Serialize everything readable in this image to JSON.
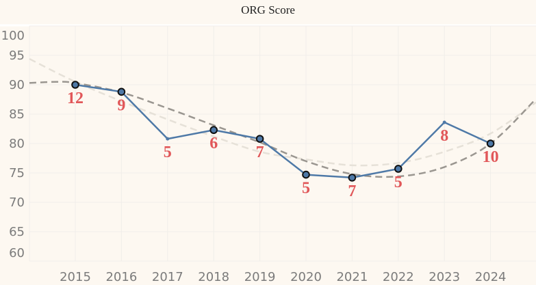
{
  "chart_data": {
    "type": "line",
    "title": "ORG Score",
    "xlabel": "",
    "ylabel": "",
    "x": [
      2015,
      2016,
      2017,
      2018,
      2019,
      2020,
      2021,
      2022,
      2023,
      2024
    ],
    "x_ticks": [
      "2015",
      "2016",
      "2017",
      "2018",
      "2019",
      "2020",
      "2021",
      "2022",
      "2023",
      "2024"
    ],
    "y_ticks": [
      "60",
      "65",
      "70",
      "75",
      "80",
      "85",
      "90",
      "95",
      "100"
    ],
    "ylim": [
      60,
      100
    ],
    "xlim": [
      2014,
      2025
    ],
    "grid": true,
    "series": [
      {
        "name": "ORG Score",
        "color": "#4e79a7",
        "values": [
          90.0,
          88.8,
          80.8,
          82.3,
          80.8,
          74.7,
          74.2,
          75.7,
          83.6,
          80.0
        ],
        "labels": [
          "12",
          "9",
          "5",
          "6",
          "7",
          "5",
          "7",
          "5",
          "8",
          "10"
        ],
        "marked": [
          true,
          true,
          false,
          true,
          true,
          true,
          true,
          true,
          false,
          true
        ]
      }
    ],
    "trendlines": [
      {
        "name": "trend-light",
        "color": "#e6e1d8",
        "x": [
          2014,
          2015,
          2016,
          2017,
          2018,
          2019,
          2020,
          2021,
          2022,
          2023,
          2024,
          2025
        ],
        "values": [
          94.4,
          90.5,
          87.2,
          84.1,
          81.2,
          78.6,
          77.3,
          76.3,
          76.7,
          78.6,
          81.7,
          87.0
        ]
      },
      {
        "name": "trend-dark",
        "color": "#9a9690",
        "x": [
          2014,
          2014.6,
          2015,
          2016,
          2017,
          2018,
          2019,
          2020,
          2021,
          2022,
          2023,
          2024,
          2025
        ],
        "values": [
          90.3,
          90.5,
          90.3,
          88.7,
          86.0,
          83.1,
          80.2,
          77.0,
          74.8,
          74.4,
          76.0,
          80.0,
          87.6
        ]
      }
    ],
    "label_color": "#e15759"
  }
}
